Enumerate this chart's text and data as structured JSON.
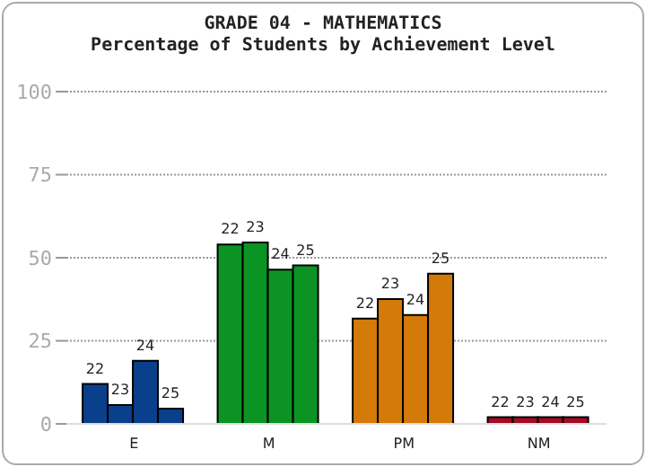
{
  "chart_data": {
    "type": "bar",
    "title": "GRADE 04 - MATHEMATICS",
    "subtitle": "Percentage of Students by Achievement Level",
    "categories": [
      "E",
      "M",
      "PM",
      "NM"
    ],
    "series": [
      {
        "name": "22",
        "colors": [
          "#0a3f8c",
          "#0b9423",
          "#d47a08",
          "#a50a24"
        ],
        "values": [
          12,
          54,
          31.7,
          2
        ]
      },
      {
        "name": "23",
        "colors": [
          "#0a3f8c",
          "#0b9423",
          "#d47a08",
          "#a50a24"
        ],
        "values": [
          5.7,
          54.6,
          37.6,
          2
        ]
      },
      {
        "name": "24",
        "colors": [
          "#0a3f8c",
          "#0b9423",
          "#d47a08",
          "#a50a24"
        ],
        "values": [
          19,
          46.4,
          32.8,
          2
        ]
      },
      {
        "name": "25",
        "colors": [
          "#0a3f8c",
          "#0b9423",
          "#d47a08",
          "#a50a24"
        ],
        "values": [
          4.6,
          47.7,
          45.2,
          2
        ]
      }
    ],
    "ylim": [
      0,
      100
    ],
    "yticks": [
      0,
      25,
      50,
      75,
      100
    ],
    "grid": "y"
  }
}
